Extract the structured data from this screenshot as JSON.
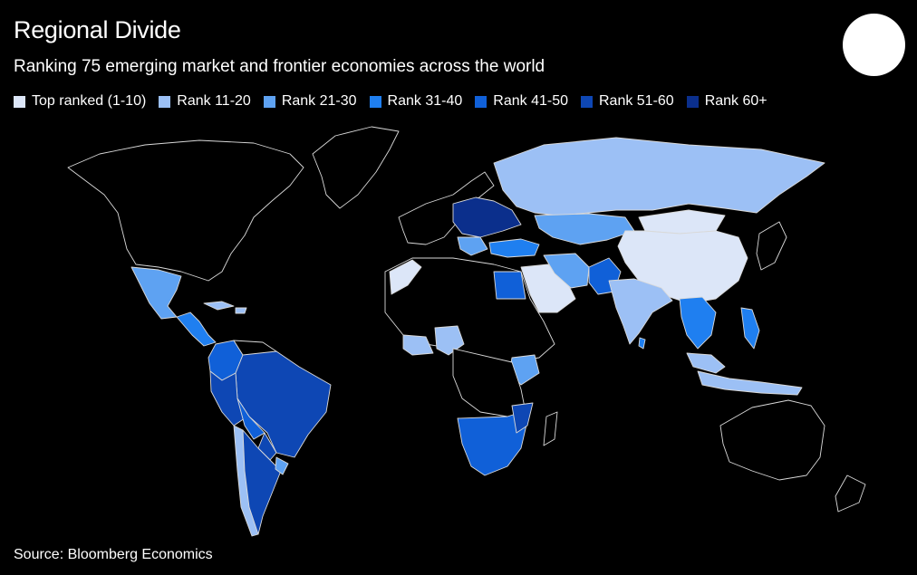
{
  "header": {
    "title": "Regional Divide",
    "subtitle": "Ranking 75 emerging market and frontier economies across the world"
  },
  "legend": [
    {
      "label": "Top ranked (1-10)",
      "color": "#dce6f8"
    },
    {
      "label": "Rank 11-20",
      "color": "#9cc0f5"
    },
    {
      "label": "Rank 21-30",
      "color": "#5ea2f2"
    },
    {
      "label": "Rank 31-40",
      "color": "#1f7ff0"
    },
    {
      "label": "Rank 41-50",
      "color": "#1060d8"
    },
    {
      "label": "Rank 51-60",
      "color": "#0e47b4"
    },
    {
      "label": "Rank 60+",
      "color": "#0b2f8c"
    }
  ],
  "footer": {
    "source": "Source: Bloomberg Economics"
  },
  "logo": {
    "icon": "circle-logo-icon"
  }
}
